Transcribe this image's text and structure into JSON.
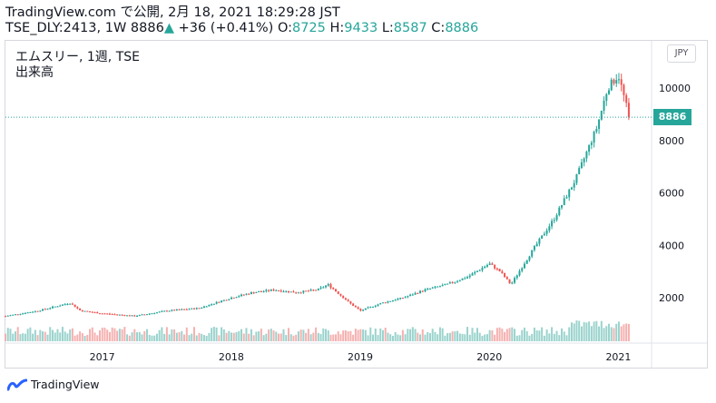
{
  "header": {
    "line1": "TradingView.com で公開, 2月 18, 2021 18:29:28 JST",
    "symbol": "TSE_DLY:2413, 1W",
    "price": "8886",
    "arrow": "▲",
    "change": "+36 (+0.41%)",
    "o_label": "O:",
    "o_value": "8725",
    "h_label": "H:",
    "h_value": "9433",
    "l_label": "L:",
    "l_value": "8587",
    "c_label": "C:",
    "c_value": "8886"
  },
  "legend": {
    "title": "エムスリー, 1週, TSE",
    "volume_label": "出来高"
  },
  "currency": "JPY",
  "last_price_label": "8886",
  "footer": {
    "brand": "TradingView"
  },
  "colors": {
    "up": "#26a69a",
    "down": "#ef5350",
    "vol_up": "#9bd3cd",
    "vol_down": "#f5b1b0"
  },
  "chart_data": {
    "type": "candlestick",
    "interval": "1W",
    "x_ticks": [
      "2017",
      "2018",
      "2019",
      "2020",
      "2021"
    ],
    "y_ticks": [
      "2000",
      "4000",
      "6000",
      "8000",
      "10000"
    ],
    "ylim": [
      0,
      11500
    ],
    "last_price_line": 8886,
    "grid": false,
    "series_close_approx": [
      {
        "date": "2016-04",
        "close": 1300
      },
      {
        "date": "2016-07",
        "close": 1500
      },
      {
        "date": "2016-10",
        "close": 1800
      },
      {
        "date": "2016-11",
        "close": 1500
      },
      {
        "date": "2017-01",
        "close": 1400
      },
      {
        "date": "2017-04",
        "close": 1300
      },
      {
        "date": "2017-07",
        "close": 1500
      },
      {
        "date": "2017-10",
        "close": 1600
      },
      {
        "date": "2018-01",
        "close": 2000
      },
      {
        "date": "2018-03",
        "close": 2200
      },
      {
        "date": "2018-05",
        "close": 2300
      },
      {
        "date": "2018-07",
        "close": 2200
      },
      {
        "date": "2018-09",
        "close": 2300
      },
      {
        "date": "2018-10",
        "close": 2500
      },
      {
        "date": "2018-12",
        "close": 1800
      },
      {
        "date": "2019-01",
        "close": 1500
      },
      {
        "date": "2019-03",
        "close": 1800
      },
      {
        "date": "2019-05",
        "close": 2000
      },
      {
        "date": "2019-07",
        "close": 2300
      },
      {
        "date": "2019-09",
        "close": 2500
      },
      {
        "date": "2019-11",
        "close": 2800
      },
      {
        "date": "2020-01",
        "close": 3300
      },
      {
        "date": "2020-02",
        "close": 3000
      },
      {
        "date": "2020-03",
        "close": 2500
      },
      {
        "date": "2020-05",
        "close": 3800
      },
      {
        "date": "2020-07",
        "close": 5000
      },
      {
        "date": "2020-09",
        "close": 6500
      },
      {
        "date": "2020-11",
        "close": 8500
      },
      {
        "date": "2020-12",
        "close": 10000
      },
      {
        "date": "2021-01",
        "close": 10500
      },
      {
        "date": "2021-02",
        "close": 8886
      }
    ]
  }
}
